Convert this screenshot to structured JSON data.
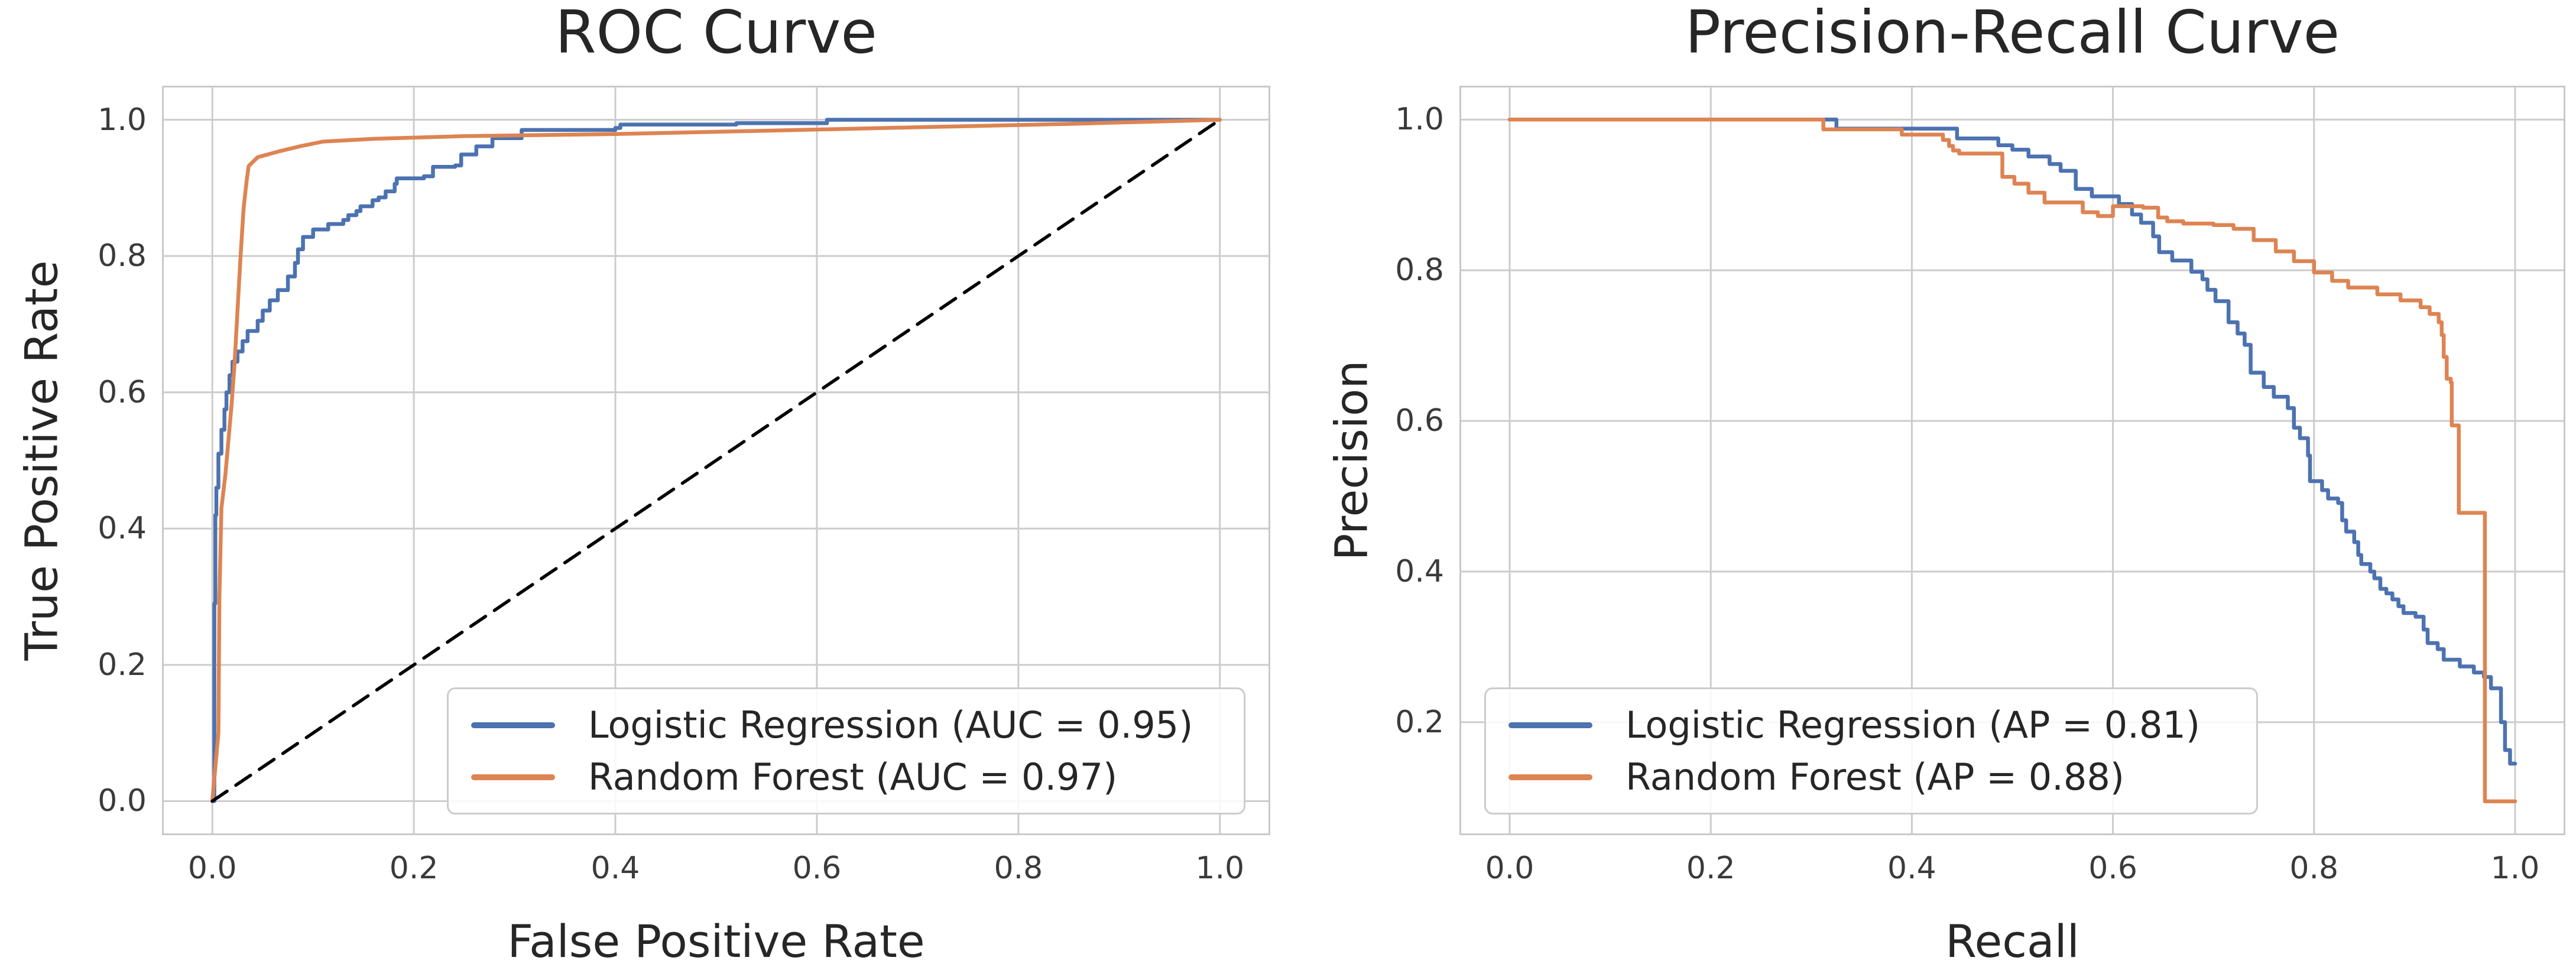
{
  "figure": {
    "background": "#ffffff"
  },
  "colors": {
    "series_blue": "#4c72b0",
    "series_orange": "#dd8452",
    "chance_line": "#000000",
    "grid": "#cccccc",
    "spine": "#c9c9c9",
    "text": "#262626",
    "legend_border": "#cccccc"
  },
  "chart_data": [
    {
      "id": "roc",
      "type": "line",
      "title": "ROC Curve",
      "xlabel": "False Positive Rate",
      "ylabel": "True Positive Rate",
      "xlim": [
        -0.05,
        1.05
      ],
      "ylim": [
        -0.05,
        1.05
      ],
      "xticks": [
        0.0,
        0.2,
        0.4,
        0.6,
        0.8,
        1.0
      ],
      "yticks": [
        0.0,
        0.2,
        0.4,
        0.6,
        0.8,
        1.0
      ],
      "grid": true,
      "legend_position": "lower right",
      "series": [
        {
          "name": "Logistic Regression (AUC = 0.95)",
          "color": "#4c72b0",
          "dash": "solid",
          "interp": "step-after",
          "in_legend": true,
          "points": [
            [
              0,
              0
            ],
            [
              0.002,
              0.06
            ],
            [
              0.002,
              0.29
            ],
            [
              0.003,
              0.42
            ],
            [
              0.004,
              0.46
            ],
            [
              0.006,
              0.51
            ],
            [
              0.009,
              0.545
            ],
            [
              0.012,
              0.575
            ],
            [
              0.014,
              0.6
            ],
            [
              0.017,
              0.625
            ],
            [
              0.02,
              0.645
            ],
            [
              0.025,
              0.66
            ],
            [
              0.03,
              0.675
            ],
            [
              0.035,
              0.69
            ],
            [
              0.045,
              0.705
            ],
            [
              0.05,
              0.72
            ],
            [
              0.057,
              0.735
            ],
            [
              0.065,
              0.75
            ],
            [
              0.075,
              0.77
            ],
            [
              0.082,
              0.79
            ],
            [
              0.085,
              0.81
            ],
            [
              0.09,
              0.828
            ],
            [
              0.1,
              0.839
            ],
            [
              0.115,
              0.847
            ],
            [
              0.13,
              0.853
            ],
            [
              0.135,
              0.86
            ],
            [
              0.143,
              0.866
            ],
            [
              0.147,
              0.873
            ],
            [
              0.159,
              0.882
            ],
            [
              0.165,
              0.886
            ],
            [
              0.172,
              0.895
            ],
            [
              0.181,
              0.906
            ],
            [
              0.183,
              0.914
            ],
            [
              0.21,
              0.917
            ],
            [
              0.219,
              0.931
            ],
            [
              0.241,
              0.933
            ],
            [
              0.247,
              0.949
            ],
            [
              0.262,
              0.961
            ],
            [
              0.278,
              0.973
            ],
            [
              0.307,
              0.985
            ],
            [
              0.4,
              0.988
            ],
            [
              0.405,
              0.993
            ],
            [
              0.52,
              0.995
            ],
            [
              0.61,
              1.0
            ],
            [
              1.0,
              1.0
            ]
          ]
        },
        {
          "name": "Random Forest (AUC = 0.97)",
          "color": "#dd8452",
          "dash": "solid",
          "interp": "linear",
          "in_legend": true,
          "points": [
            [
              0,
              0
            ],
            [
              0.006,
              0.1
            ],
            [
              0.007,
              0.3
            ],
            [
              0.009,
              0.43
            ],
            [
              0.013,
              0.48
            ],
            [
              0.016,
              0.53
            ],
            [
              0.019,
              0.58
            ],
            [
              0.022,
              0.64
            ],
            [
              0.025,
              0.72
            ],
            [
              0.028,
              0.8
            ],
            [
              0.031,
              0.87
            ],
            [
              0.034,
              0.91
            ],
            [
              0.036,
              0.932
            ],
            [
              0.045,
              0.945
            ],
            [
              0.067,
              0.954
            ],
            [
              0.09,
              0.962
            ],
            [
              0.11,
              0.968
            ],
            [
              0.16,
              0.972
            ],
            [
              0.25,
              0.976
            ],
            [
              0.4,
              0.979
            ],
            [
              0.55,
              0.984
            ],
            [
              0.7,
              0.989
            ],
            [
              0.85,
              0.994
            ],
            [
              1.0,
              1.0
            ]
          ]
        },
        {
          "name": "chance diagonal",
          "color": "#000000",
          "dash": "dashed",
          "interp": "linear",
          "in_legend": false,
          "points": [
            [
              0,
              0
            ],
            [
              1,
              1
            ]
          ]
        }
      ]
    },
    {
      "id": "pr",
      "type": "line",
      "title": "Precision-Recall Curve",
      "xlabel": "Recall",
      "ylabel": "Precision",
      "xlim": [
        -0.05,
        1.05
      ],
      "ylim": [
        0.05,
        1.045
      ],
      "xticks": [
        0.0,
        0.2,
        0.4,
        0.6,
        0.8,
        1.0
      ],
      "yticks": [
        0.2,
        0.4,
        0.6,
        0.8,
        1.0
      ],
      "grid": true,
      "legend_position": "lower left",
      "series": [
        {
          "name": "Logistic Regression (AP = 0.81)",
          "color": "#4c72b0",
          "dash": "solid",
          "interp": "step-after",
          "in_legend": true,
          "points": [
            [
              0,
              1.0
            ],
            [
              0.32,
              1.0
            ],
            [
              0.325,
              0.988
            ],
            [
              0.44,
              0.988
            ],
            [
              0.445,
              0.975
            ],
            [
              0.48,
              0.975
            ],
            [
              0.486,
              0.966
            ],
            [
              0.5,
              0.96
            ],
            [
              0.516,
              0.951
            ],
            [
              0.537,
              0.941
            ],
            [
              0.548,
              0.932
            ],
            [
              0.563,
              0.908
            ],
            [
              0.579,
              0.898
            ],
            [
              0.606,
              0.888
            ],
            [
              0.619,
              0.874
            ],
            [
              0.628,
              0.863
            ],
            [
              0.64,
              0.845
            ],
            [
              0.646,
              0.824
            ],
            [
              0.659,
              0.813
            ],
            [
              0.678,
              0.798
            ],
            [
              0.689,
              0.788
            ],
            [
              0.694,
              0.774
            ],
            [
              0.702,
              0.759
            ],
            [
              0.715,
              0.731
            ],
            [
              0.724,
              0.716
            ],
            [
              0.731,
              0.701
            ],
            [
              0.737,
              0.664
            ],
            [
              0.75,
              0.645
            ],
            [
              0.76,
              0.632
            ],
            [
              0.774,
              0.617
            ],
            [
              0.78,
              0.591
            ],
            [
              0.786,
              0.577
            ],
            [
              0.794,
              0.554
            ],
            [
              0.796,
              0.52
            ],
            [
              0.808,
              0.508
            ],
            [
              0.814,
              0.497
            ],
            [
              0.824,
              0.491
            ],
            [
              0.828,
              0.468
            ],
            [
              0.832,
              0.453
            ],
            [
              0.84,
              0.439
            ],
            [
              0.844,
              0.422
            ],
            [
              0.847,
              0.41
            ],
            [
              0.856,
              0.4
            ],
            [
              0.86,
              0.391
            ],
            [
              0.866,
              0.377
            ],
            [
              0.872,
              0.371
            ],
            [
              0.878,
              0.363
            ],
            [
              0.884,
              0.354
            ],
            [
              0.889,
              0.345
            ],
            [
              0.901,
              0.34
            ],
            [
              0.909,
              0.323
            ],
            [
              0.913,
              0.305
            ],
            [
              0.923,
              0.297
            ],
            [
              0.929,
              0.283
            ],
            [
              0.945,
              0.274
            ],
            [
              0.959,
              0.266
            ],
            [
              0.969,
              0.26
            ],
            [
              0.976,
              0.245
            ],
            [
              0.986,
              0.2
            ],
            [
              0.99,
              0.163
            ],
            [
              0.995,
              0.145
            ],
            [
              1.0,
              0.145
            ]
          ]
        },
        {
          "name": "Random Forest (AP = 0.88)",
          "color": "#dd8452",
          "dash": "solid",
          "interp": "step-after",
          "in_legend": true,
          "points": [
            [
              0,
              1.0
            ],
            [
              0.308,
              1.0
            ],
            [
              0.312,
              0.987
            ],
            [
              0.385,
              0.987
            ],
            [
              0.39,
              0.98
            ],
            [
              0.427,
              0.98
            ],
            [
              0.431,
              0.973
            ],
            [
              0.437,
              0.965
            ],
            [
              0.441,
              0.959
            ],
            [
              0.447,
              0.955
            ],
            [
              0.485,
              0.955
            ],
            [
              0.49,
              0.924
            ],
            [
              0.502,
              0.915
            ],
            [
              0.516,
              0.903
            ],
            [
              0.532,
              0.89
            ],
            [
              0.566,
              0.89
            ],
            [
              0.57,
              0.877
            ],
            [
              0.585,
              0.872
            ],
            [
              0.6,
              0.885
            ],
            [
              0.63,
              0.883
            ],
            [
              0.645,
              0.87
            ],
            [
              0.654,
              0.865
            ],
            [
              0.67,
              0.862
            ],
            [
              0.7,
              0.86
            ],
            [
              0.72,
              0.855
            ],
            [
              0.74,
              0.84
            ],
            [
              0.762,
              0.825
            ],
            [
              0.78,
              0.812
            ],
            [
              0.8,
              0.797
            ],
            [
              0.818,
              0.786
            ],
            [
              0.834,
              0.777
            ],
            [
              0.863,
              0.768
            ],
            [
              0.886,
              0.76
            ],
            [
              0.906,
              0.751
            ],
            [
              0.915,
              0.742
            ],
            [
              0.924,
              0.731
            ],
            [
              0.927,
              0.714
            ],
            [
              0.929,
              0.685
            ],
            [
              0.932,
              0.656
            ],
            [
              0.936,
              0.651
            ],
            [
              0.937,
              0.594
            ],
            [
              0.943,
              0.594
            ],
            [
              0.944,
              0.478
            ],
            [
              0.97,
              0.478
            ],
            [
              0.97,
              0.095
            ],
            [
              1.0,
              0.095
            ]
          ]
        }
      ]
    }
  ]
}
